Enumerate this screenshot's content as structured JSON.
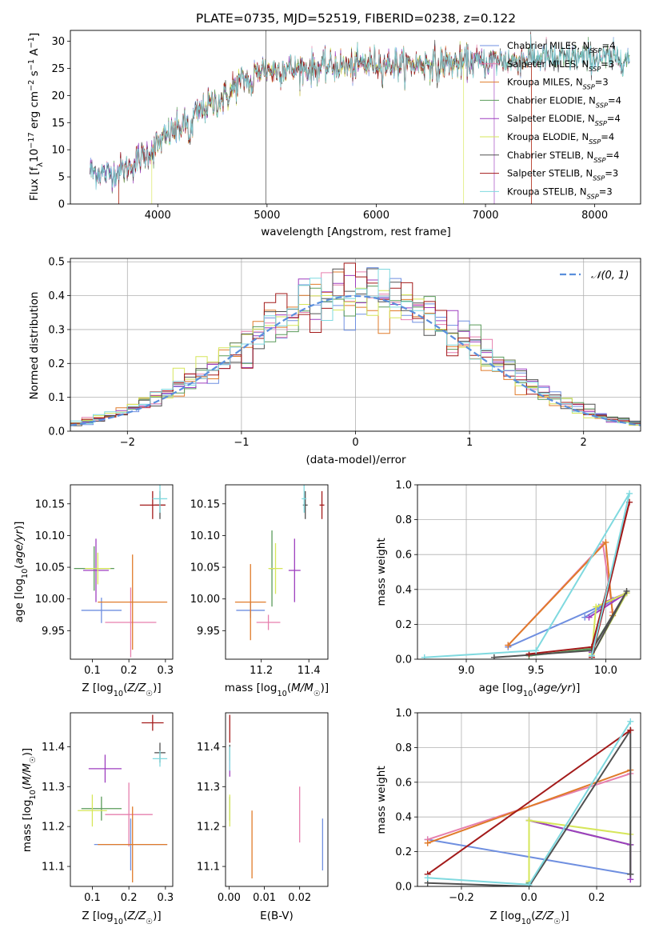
{
  "chart_data": [
    {
      "type": "line",
      "title": "PLATE=0735, MJD=52519, FIBERID=0238, z=0.122",
      "xlabel": "wavelength [Angstrom, rest frame]",
      "ylabel": "Flux [fλ10⁻¹⁷ erg cm⁻² s⁻¹ A⁻¹]",
      "xlim": [
        3200,
        8420
      ],
      "ylim": [
        0,
        32
      ],
      "xticks": [
        "4000",
        "5000",
        "6000",
        "7000",
        "8000"
      ],
      "yticks": [
        "0",
        "5",
        "10",
        "15",
        "20",
        "25",
        "30"
      ],
      "legend_position": "right",
      "spectrum_shape": {
        "x": [
          3380,
          3450,
          3550,
          3650,
          3750,
          3850,
          3950,
          4050,
          4150,
          4250,
          4350,
          4450,
          4550,
          4650,
          4750,
          4850,
          4950,
          5050,
          5150,
          5250,
          5350,
          5450,
          5550,
          5650,
          5750,
          5850,
          5950,
          6050,
          6150,
          6250,
          6350,
          6450,
          6550,
          6650,
          6750,
          6850,
          6950,
          7050,
          7150,
          7250,
          7350,
          7450,
          7550,
          7650,
          7750,
          7850,
          7950,
          8050,
          8150,
          8250,
          8320
        ],
        "y": [
          6.2,
          5.8,
          5.5,
          6.2,
          7.0,
          8.5,
          10.0,
          12.0,
          13.5,
          14.5,
          16.5,
          18.0,
          19.0,
          20.2,
          22.5,
          23.5,
          25.0,
          24.5,
          25.0,
          24.8,
          25.0,
          25.0,
          25.3,
          25.5,
          25.2,
          25.6,
          26.0,
          25.8,
          25.8,
          25.5,
          25.8,
          26.0,
          26.2,
          26.0,
          25.8,
          26.2,
          26.0,
          26.3,
          26.6,
          26.3,
          26.8,
          27.0,
          27.0,
          26.4,
          27.0,
          27.0,
          26.8,
          27.0,
          26.6,
          27.0,
          26.6
        ]
      },
      "series": [
        {
          "name": "Chabrier MILES, N",
          "sub": "SSP",
          "suffix": "=4",
          "color": "#6f8fe0"
        },
        {
          "name": "Salpeter MILES, N",
          "sub": "SSP",
          "suffix": "=3",
          "color": "#e67fae"
        },
        {
          "name": "Kroupa MILES, N",
          "sub": "SSP",
          "suffix": "=3",
          "color": "#e07b2a"
        },
        {
          "name": "Chabrier ELODIE, N",
          "sub": "SSP",
          "suffix": "=4",
          "color": "#5a9b5a"
        },
        {
          "name": "Salpeter ELODIE, N",
          "sub": "SSP",
          "suffix": "=4",
          "color": "#9e3fbf"
        },
        {
          "name": "Kroupa ELODIE, N",
          "sub": "SSP",
          "suffix": "=4",
          "color": "#d6e65a"
        },
        {
          "name": "Chabrier STELIB, N",
          "sub": "SSP",
          "suffix": "=4",
          "color": "#505050"
        },
        {
          "name": "Salpeter STELIB, N",
          "sub": "SSP",
          "suffix": "=3",
          "color": "#a31a1a"
        },
        {
          "name": "Kroupa STELIB, N",
          "sub": "SSP",
          "suffix": "=3",
          "color": "#7fd9df"
        }
      ]
    },
    {
      "type": "line",
      "xlabel": "(data-model)/error",
      "ylabel": "Normed distribution",
      "xlim": [
        -2.5,
        2.5
      ],
      "ylim": [
        0,
        0.51
      ],
      "xticks": [
        "−2",
        "−1",
        "0",
        "1",
        "2"
      ],
      "yticks": [
        "0.0",
        "0.1",
        "0.2",
        "0.3",
        "0.4",
        "0.5"
      ],
      "grid": true,
      "legend_label": "𝒩(0, 1)",
      "legend_position": "top-right",
      "reference_curve": {
        "name": "N(0,1)",
        "mean": 0,
        "sigma": 1,
        "color": "#5a8fdc"
      },
      "histogram_bins": {
        "start": -2.5,
        "width": 0.1,
        "count": 50
      }
    },
    {
      "type": "scatter",
      "xlabel": "Z [log10(Z/Z☉)]",
      "ylabel": "age  [log10(age/yr)]",
      "xlim": [
        0.04,
        0.32
      ],
      "ylim": [
        9.905,
        10.18
      ],
      "xticks": [
        "0.1",
        "0.2",
        "0.3"
      ],
      "yticks": [
        "9.95",
        "10.00",
        "10.05",
        "10.10",
        "10.15"
      ],
      "points": [
        {
          "x": 0.125,
          "y": 9.982,
          "xerr": 0.055,
          "yerr": 0.02,
          "color": "#6f8fe0"
        },
        {
          "x": 0.205,
          "y": 9.963,
          "xerr": 0.07,
          "yerr": 0.055,
          "color": "#e67fae"
        },
        {
          "x": 0.21,
          "y": 9.995,
          "xerr": 0.095,
          "yerr": 0.075,
          "color": "#e07b2a"
        },
        {
          "x": 0.105,
          "y": 10.048,
          "xerr": 0.055,
          "yerr": 0.035,
          "color": "#5a9b5a"
        },
        {
          "x": 0.11,
          "y": 10.045,
          "xerr": 0.035,
          "yerr": 0.05,
          "color": "#9e3fbf"
        },
        {
          "x": 0.115,
          "y": 10.048,
          "xerr": 0.035,
          "yerr": 0.025,
          "color": "#d6e65a"
        },
        {
          "x": 0.285,
          "y": 10.148,
          "xerr": 0.015,
          "yerr": 0.022,
          "color": "#505050"
        },
        {
          "x": 0.265,
          "y": 10.148,
          "xerr": 0.035,
          "yerr": 0.022,
          "color": "#a31a1a"
        },
        {
          "x": 0.285,
          "y": 10.158,
          "xerr": 0.02,
          "yerr": 0.022,
          "color": "#7fd9df"
        }
      ]
    },
    {
      "type": "scatter",
      "xlabel": "mass [log10(M/M☉)]",
      "xlim": [
        11.05,
        11.48
      ],
      "ylim": [
        9.905,
        10.18
      ],
      "xticks": [
        "11.2",
        "11.4"
      ],
      "yticks": [
        "9.95",
        "10.00",
        "10.05",
        "10.10",
        "10.15"
      ],
      "points": [
        {
          "x": 11.155,
          "y": 9.982,
          "xerr": 0.06,
          "yerr": 0.012,
          "color": "#6f8fe0"
        },
        {
          "x": 11.23,
          "y": 9.963,
          "xerr": 0.05,
          "yerr": 0.012,
          "color": "#e67fae"
        },
        {
          "x": 11.155,
          "y": 9.995,
          "xerr": 0.065,
          "yerr": 0.06,
          "color": "#e07b2a"
        },
        {
          "x": 11.245,
          "y": 10.048,
          "xerr": 0.01,
          "yerr": 0.06,
          "color": "#5a9b5a"
        },
        {
          "x": 11.34,
          "y": 10.045,
          "xerr": 0.025,
          "yerr": 0.05,
          "color": "#9e3fbf"
        },
        {
          "x": 11.26,
          "y": 10.048,
          "xerr": 0.03,
          "yerr": 0.04,
          "color": "#d6e65a"
        },
        {
          "x": 11.385,
          "y": 10.148,
          "xerr": 0.01,
          "yerr": 0.022,
          "color": "#505050"
        },
        {
          "x": 11.455,
          "y": 10.148,
          "xerr": 0.01,
          "yerr": 0.022,
          "color": "#a31a1a"
        },
        {
          "x": 11.38,
          "y": 10.158,
          "xerr": 0.01,
          "yerr": 0.022,
          "color": "#7fd9df"
        }
      ]
    },
    {
      "type": "line",
      "xlabel": "age  [log10(age/yr)]",
      "ylabel": "mass weight",
      "xlim": [
        8.65,
        10.25
      ],
      "ylim": [
        0,
        1.0
      ],
      "xticks": [
        "9.0",
        "9.5",
        "10.0"
      ],
      "yticks": [
        "0.0",
        "0.2",
        "0.4",
        "0.6",
        "0.8",
        "1.0"
      ],
      "grid": true,
      "series": [
        {
          "color": "#6f8fe0",
          "x": [
            9.3,
            9.95,
            10.05,
            9.85
          ],
          "y": [
            0.07,
            0.3,
            0.34,
            0.24
          ]
        },
        {
          "color": "#e67fae",
          "x": [
            9.3,
            9.98,
            10.05
          ],
          "y": [
            0.08,
            0.66,
            0.27
          ]
        },
        {
          "color": "#e07b2a",
          "x": [
            9.3,
            10.0,
            10.05
          ],
          "y": [
            0.08,
            0.67,
            0.25
          ]
        },
        {
          "color": "#5a9b5a",
          "x": [
            9.45,
            9.9,
            10.15,
            9.9
          ],
          "y": [
            0.02,
            0.06,
            0.38,
            0.02
          ]
        },
        {
          "color": "#9e3fbf",
          "x": [
            9.9,
            10.0,
            10.15,
            9.88
          ],
          "y": [
            0.04,
            0.33,
            0.38,
            0.24
          ]
        },
        {
          "color": "#d6e65a",
          "x": [
            9.9,
            9.93,
            10.15,
            9.9
          ],
          "y": [
            0.03,
            0.3,
            0.38,
            0.02
          ]
        },
        {
          "color": "#505050",
          "x": [
            9.2,
            9.9,
            10.15,
            9.9
          ],
          "y": [
            0.01,
            0.05,
            0.39,
            0.02
          ]
        },
        {
          "color": "#a31a1a",
          "x": [
            9.45,
            9.9,
            10.17,
            9.9
          ],
          "y": [
            0.03,
            0.07,
            0.9,
            0.01
          ]
        },
        {
          "color": "#7fd9df",
          "x": [
            8.7,
            9.5,
            10.17,
            9.9
          ],
          "y": [
            0.01,
            0.05,
            0.95,
            0.02
          ]
        }
      ]
    },
    {
      "type": "scatter",
      "xlabel": "Z [log10(Z/Z☉)]",
      "ylabel": "mass [log10(M/M☉)]",
      "xlim": [
        0.04,
        0.32
      ],
      "ylim": [
        11.05,
        11.485
      ],
      "xticks": [
        "0.1",
        "0.2",
        "0.3"
      ],
      "yticks": [
        "11.1",
        "11.2",
        "11.3",
        "11.4"
      ],
      "points": [
        {
          "x": 0.205,
          "y": 11.155,
          "xerr": 0.1,
          "yerr": 0.065,
          "color": "#6f8fe0"
        },
        {
          "x": 0.2,
          "y": 11.23,
          "xerr": 0.065,
          "yerr": 0.08,
          "color": "#e67fae"
        },
        {
          "x": 0.21,
          "y": 11.155,
          "xerr": 0.095,
          "yerr": 0.095,
          "color": "#e07b2a"
        },
        {
          "x": 0.125,
          "y": 11.245,
          "xerr": 0.055,
          "yerr": 0.03,
          "color": "#5a9b5a"
        },
        {
          "x": 0.135,
          "y": 11.345,
          "xerr": 0.045,
          "yerr": 0.035,
          "color": "#9e3fbf"
        },
        {
          "x": 0.1,
          "y": 11.24,
          "xerr": 0.04,
          "yerr": 0.04,
          "color": "#d6e65a"
        },
        {
          "x": 0.285,
          "y": 11.385,
          "xerr": 0.015,
          "yerr": 0.025,
          "color": "#505050"
        },
        {
          "x": 0.265,
          "y": 11.46,
          "xerr": 0.03,
          "yerr": 0.02,
          "color": "#a31a1a"
        },
        {
          "x": 0.285,
          "y": 11.37,
          "xerr": 0.02,
          "yerr": 0.02,
          "color": "#7fd9df"
        }
      ]
    },
    {
      "type": "scatter",
      "xlabel": "E(B-V)",
      "xlim": [
        -0.001,
        0.028
      ],
      "ylim": [
        11.05,
        11.485
      ],
      "xticks": [
        "0.00",
        "0.01",
        "0.02"
      ],
      "yticks": [
        "11.1",
        "11.2",
        "11.3",
        "11.4"
      ],
      "points": [
        {
          "x": 0.0265,
          "y": 11.155,
          "yerr": 0.065,
          "color": "#6f8fe0"
        },
        {
          "x": 0.02,
          "y": 11.23,
          "yerr": 0.07,
          "color": "#e67fae"
        },
        {
          "x": 0.0065,
          "y": 11.155,
          "yerr": 0.085,
          "color": "#e07b2a"
        },
        {
          "x": 0.0002,
          "y": 11.245,
          "yerr": 0.03,
          "color": "#5a9b5a"
        },
        {
          "x": 0.0002,
          "y": 11.345,
          "yerr": 0.02,
          "color": "#9e3fbf"
        },
        {
          "x": 0.0002,
          "y": 11.24,
          "yerr": 0.04,
          "color": "#d6e65a"
        },
        {
          "x": 0.0002,
          "y": 11.385,
          "yerr": 0.02,
          "color": "#505050"
        },
        {
          "x": 0.0002,
          "y": 11.445,
          "yerr": 0.035,
          "color": "#a31a1a"
        },
        {
          "x": 0.0002,
          "y": 11.37,
          "yerr": 0.03,
          "color": "#7fd9df"
        }
      ]
    },
    {
      "type": "line",
      "xlabel": "Z [log10(Z/Z☉)]",
      "ylabel": "mass weight",
      "xlim": [
        -0.33,
        0.33
      ],
      "ylim": [
        0,
        1.0
      ],
      "xticks": [
        "−0.2",
        "0.0",
        "0.2"
      ],
      "yticks": [
        "0.0",
        "0.2",
        "0.4",
        "0.6",
        "0.8",
        "1.0"
      ],
      "grid": true,
      "series": [
        {
          "color": "#6f8fe0",
          "x": [
            -0.3,
            0.3
          ],
          "y": [
            0.27,
            0.07
          ]
        },
        {
          "color": "#e67fae",
          "x": [
            -0.3,
            0.3
          ],
          "y": [
            0.27,
            0.65
          ]
        },
        {
          "color": "#e07b2a",
          "x": [
            -0.3,
            0.3
          ],
          "y": [
            0.25,
            0.67
          ]
        },
        {
          "color": "#5a9b5a",
          "x": [
            0.0,
            0.0,
            0.3,
            0.3
          ],
          "y": [
            0.02,
            0.38,
            0.24,
            0.07
          ]
        },
        {
          "color": "#9e3fbf",
          "x": [
            0.0,
            0.3,
            0.3
          ],
          "y": [
            0.38,
            0.24,
            0.04
          ]
        },
        {
          "color": "#d6e65a",
          "x": [
            0.0,
            0.0,
            0.3
          ],
          "y": [
            0.03,
            0.38,
            0.3
          ]
        },
        {
          "color": "#505050",
          "x": [
            -0.3,
            0.0,
            0.3,
            0.3
          ],
          "y": [
            0.02,
            0.0,
            0.9,
            0.07
          ]
        },
        {
          "color": "#a31a1a",
          "x": [
            -0.3,
            0.3
          ],
          "y": [
            0.07,
            0.9
          ]
        },
        {
          "color": "#7fd9df",
          "x": [
            -0.3,
            0.0,
            0.3
          ],
          "y": [
            0.05,
            0.01,
            0.95
          ]
        }
      ]
    }
  ]
}
